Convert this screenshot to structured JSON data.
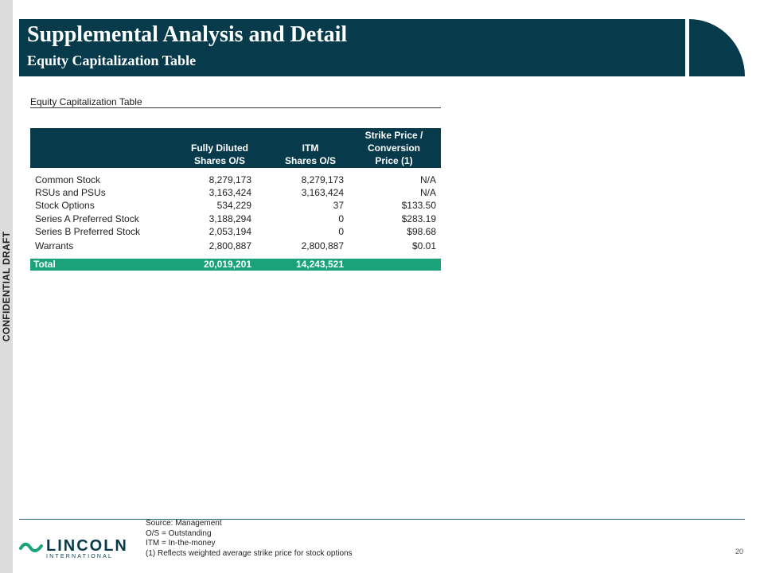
{
  "side_label": "CONFIDENTIAL DRAFT",
  "header": {
    "title": "Supplemental Analysis and Detail",
    "subtitle": "Equity Capitalization Table"
  },
  "section_title": "Equity Capitalization Table",
  "table": {
    "columns": {
      "fully_diluted": [
        "Fully Diluted",
        "Shares O/S"
      ],
      "itm": [
        "ITM",
        "Shares O/S"
      ],
      "strike": [
        "Strike Price /",
        "Conversion",
        "Price (1)"
      ]
    },
    "rows": [
      {
        "name": "Common Stock",
        "fully_diluted": "8,279,173",
        "itm": "8,279,173",
        "strike": "N/A"
      },
      {
        "name": "RSUs and PSUs",
        "fully_diluted": "3,163,424",
        "itm": "3,163,424",
        "strike": "N/A"
      },
      {
        "name": "Stock Options",
        "fully_diluted": "534,229",
        "itm": "37",
        "strike": "$133.50"
      },
      {
        "name": "Series A Preferred Stock",
        "fully_diluted": "3,188,294",
        "itm": "0",
        "strike": "$283.19"
      },
      {
        "name": "Series B Preferred Stock",
        "fully_diluted": "2,053,194",
        "itm": "0",
        "strike": "$98.68"
      },
      {
        "name": "Warrants",
        "fully_diluted": "2,800,887",
        "itm": "2,800,887",
        "strike": "$0.01"
      }
    ],
    "total": {
      "name": "Total",
      "fully_diluted": "20,019,201",
      "itm": "14,243,521"
    }
  },
  "footer": {
    "notes": [
      "Source: Management",
      "O/S = Outstanding",
      "ITM = In-the-money",
      "(1) Reflects weighted average strike price for stock options"
    ],
    "logo_text": "LINCOLN",
    "logo_subtext": "INTERNATIONAL",
    "page_number": "20"
  },
  "colors": {
    "header_band": "#073b4c",
    "total_band": "#1aa37a"
  }
}
